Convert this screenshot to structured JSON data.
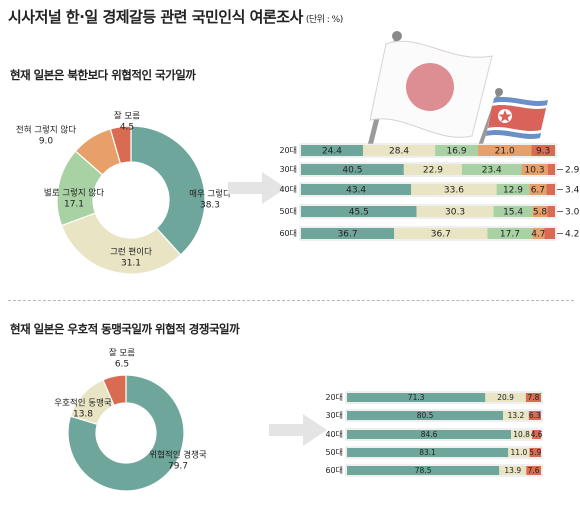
{
  "title": "시사저널 한·일 경제갈등 관련 국민인식 여론조사",
  "unit": "(단위 : %)",
  "colors": {
    "teal": "#6fa69c",
    "cream": "#e8e4c4",
    "green": "#a8d1a4",
    "orange": "#e8a06a",
    "red": "#d96b52",
    "arrow": "#e4e4e4",
    "flag_white": "#fbfbfb",
    "jp_red": "#dd8e92",
    "nk_blue": "#6b8fc9",
    "nk_red": "#d9625a",
    "pole": "#9a9a9a"
  },
  "flags": {
    "left": "japan-flag",
    "right": "north-korea-flag"
  },
  "q1": {
    "title": "현재 일본은 북한보다 위협적인 국가일까"
  },
  "q2": {
    "title": "현재 일본은 우호적 동맹국일까 위협적 경쟁국일까"
  },
  "chart_data": [
    {
      "type": "pie",
      "title": "현재 일본은 북한보다 위협적인 국가일까",
      "slices": [
        {
          "label": "매우 그렇다",
          "value": 38.3
        },
        {
          "label": "그런 편이다",
          "value": 31.1
        },
        {
          "label": "별로 그렇지 않다",
          "value": 17.1
        },
        {
          "label": "전혀 그렇지 않다",
          "value": 9.0
        },
        {
          "label": "잘 모름",
          "value": 4.5
        }
      ]
    },
    {
      "type": "bar",
      "stacked": true,
      "orientation": "horizontal",
      "categories": [
        "20대",
        "30대",
        "40대",
        "50대",
        "60대"
      ],
      "series": [
        {
          "name": "매우 그렇다",
          "values": [
            24.4,
            40.5,
            43.4,
            45.5,
            36.7
          ]
        },
        {
          "name": "그런 편이다",
          "values": [
            28.4,
            22.9,
            33.6,
            30.3,
            36.7
          ]
        },
        {
          "name": "별로 그렇지 않다",
          "values": [
            16.9,
            23.4,
            12.9,
            15.4,
            17.7
          ]
        },
        {
          "name": "전혀 그렇지 않다",
          "values": [
            21.0,
            10.3,
            6.7,
            5.8,
            4.7
          ]
        },
        {
          "name": "잘 모름",
          "values": [
            9.3,
            2.9,
            3.4,
            3.0,
            4.2
          ]
        }
      ],
      "outside_labels": [
        "",
        "2.9",
        "3.4",
        "3.0",
        "4.2"
      ]
    },
    {
      "type": "pie",
      "title": "현재 일본은 우호적 동맹국일까 위협적 경쟁국일까",
      "slices": [
        {
          "label": "위협적인 경쟁국",
          "value": 79.7
        },
        {
          "label": "우호적인 동맹국",
          "value": 13.8
        },
        {
          "label": "잘 모름",
          "value": 6.5
        }
      ]
    },
    {
      "type": "bar",
      "stacked": true,
      "orientation": "horizontal",
      "categories": [
        "20대",
        "30대",
        "40대",
        "50대",
        "60대"
      ],
      "series": [
        {
          "name": "위협적인 경쟁국",
          "values": [
            71.3,
            80.5,
            84.6,
            83.1,
            78.5
          ]
        },
        {
          "name": "우호적인 동맹국",
          "values": [
            20.9,
            13.2,
            10.8,
            11.0,
            13.9
          ]
        },
        {
          "name": "잘 모름",
          "values": [
            7.8,
            6.3,
            4.6,
            5.9,
            7.6
          ]
        }
      ]
    }
  ]
}
